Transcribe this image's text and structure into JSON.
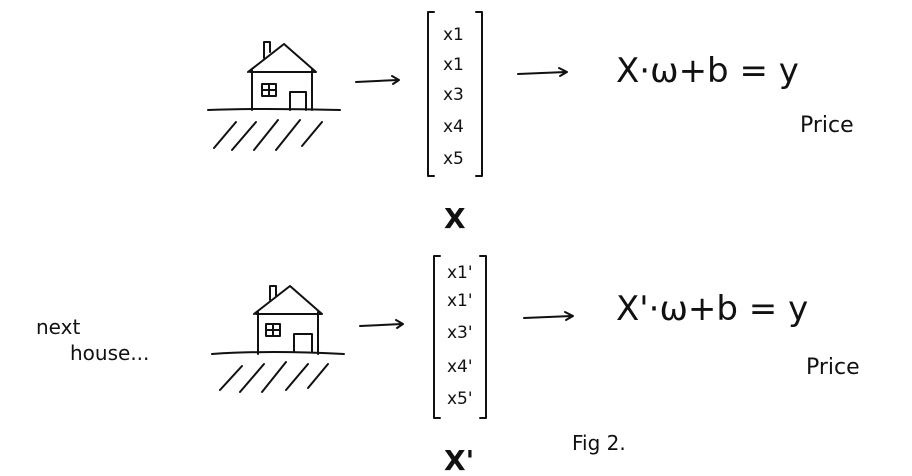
{
  "top": {
    "vector_entries": [
      "x1",
      "x1",
      "x3",
      "x4",
      "x5"
    ],
    "vector_label": "X",
    "equation": "X·ω+b = y",
    "output_label": "Price"
  },
  "bottom": {
    "vector_entries": [
      "x1'",
      "x1'",
      "x3'",
      "x4'",
      "x5'"
    ],
    "vector_label": "X'",
    "equation": "X'·ω+b = y",
    "output_label": "Price",
    "side_note_line1": "next",
    "side_note_line2": "house..."
  },
  "caption": "Fig 2."
}
